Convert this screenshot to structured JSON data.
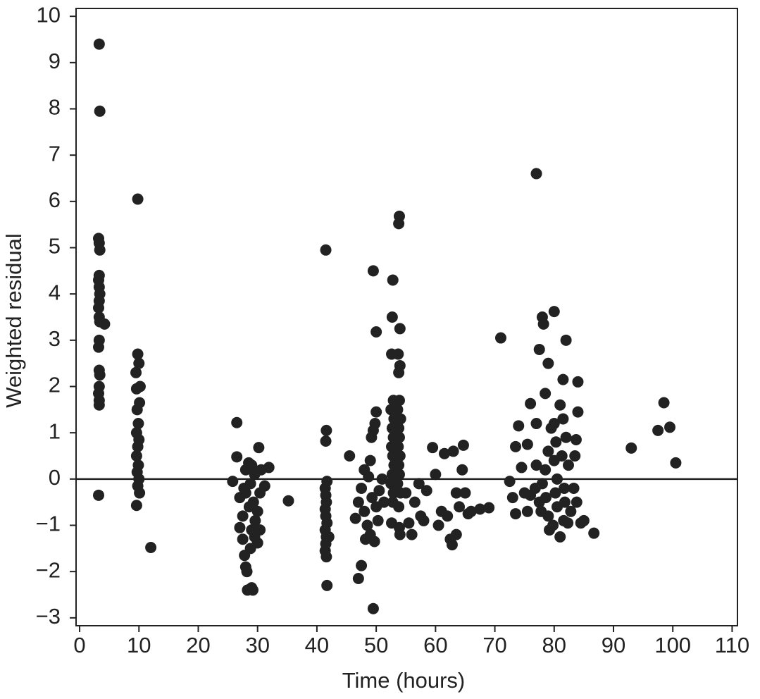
{
  "chart_data": {
    "type": "scatter",
    "x_label": "Time (hours)",
    "y_label": "Weighted residual",
    "color": "#222222",
    "hline": 0,
    "xlim": [
      -0.6,
      110.9
    ],
    "ylim": [
      -3.17,
      10.17
    ],
    "xticks": [
      0,
      10,
      20,
      30,
      40,
      50,
      60,
      70,
      80,
      90,
      100,
      110
    ],
    "yticks": [
      {
        "value": -3,
        "label": "−3"
      },
      {
        "value": -2,
        "label": "−2"
      },
      {
        "value": -1,
        "label": "−1"
      },
      0,
      1,
      2,
      3,
      4,
      5,
      6,
      7,
      8,
      9,
      10
    ],
    "x": [
      3.3,
      3.4,
      3.2,
      3.3,
      3.4,
      3.3,
      3.2,
      3.3,
      3.4,
      3.3,
      3.2,
      3.3,
      3.4,
      3.3,
      3.2,
      3.3,
      3.4,
      3.3,
      3.2,
      3.3,
      3.3,
      3.2,
      4.2,
      9.8,
      9.8,
      10,
      9.5,
      10.2,
      9.6,
      10.1,
      9.7,
      9.9,
      9.6,
      10.0,
      9.8,
      9.6,
      9.9,
      9.7,
      10.0,
      9.8,
      10.1,
      9.6,
      12,
      26.5,
      26.5,
      25.8,
      27,
      27.5,
      27,
      27.5,
      27.8,
      28,
      28.2,
      28.3,
      29,
      29.2,
      28.5,
      29,
      28,
      29.5,
      28.8,
      28,
      29.3,
      28.6,
      30,
      29.6,
      29,
      30.4,
      29.5,
      30,
      28.8,
      30.2,
      30.6,
      31.2,
      31.9,
      30.4,
      27.7,
      35.2,
      41.5,
      41.6,
      41.5,
      41.7,
      41.4,
      41.5,
      41.6,
      41.4,
      41.5,
      41.7,
      41.4,
      41.6,
      41.5,
      41.4,
      41.6,
      41.7,
      42.0,
      45.5,
      47,
      47.5,
      46.5,
      47,
      47.5,
      48,
      48,
      48.5,
      49,
      49.5,
      49.5,
      50,
      49.8,
      49.5,
      50,
      49.2,
      49,
      48.7,
      49.3,
      50,
      50.3,
      49.7,
      48.2,
      50.5,
      51,
      51.3,
      52.8,
      52.7,
      52.6,
      52.9,
      52.5,
      53.0,
      52.7,
      52.9,
      52.6,
      52.8,
      53.0,
      52.7,
      52.5,
      52.9,
      52.8,
      52.6,
      53.9,
      53.8,
      54.0,
      53.7,
      54.0,
      53.8,
      53.9,
      53.6,
      54.1,
      53.8,
      53.9,
      53.7,
      54.0,
      53.8,
      53.9,
      53.6,
      54.1,
      53.8,
      53.9,
      54.0,
      55,
      55.5,
      56,
      56.5,
      57.2,
      57.5,
      58,
      58.5,
      59.5,
      60,
      60.5,
      61,
      61.5,
      62,
      62.5,
      62.8,
      63,
      63.5,
      63.5,
      64,
      64.5,
      64.7,
      65,
      65.5,
      66,
      67.5,
      69,
      71,
      72.5,
      73,
      73.5,
      73.5,
      74,
      74.5,
      75,
      75.5,
      76,
      75.5,
      77,
      77.5,
      77,
      77,
      76.8,
      77.5,
      78,
      78.2,
      78.5,
      79,
      79.5,
      79,
      78.5,
      78,
      78.6,
      79,
      79.2,
      80,
      80,
      80.3,
      80,
      80.5,
      80.2,
      80.5,
      81,
      81,
      81.5,
      81.5,
      81.3,
      81.7,
      81.8,
      81.6,
      82,
      82,
      82.4,
      82.8,
      83.3,
      83.5,
      83.7,
      84,
      84,
      83.8,
      84.5,
      85,
      86.7,
      82.3,
      77.8,
      76,
      79.8,
      93,
      97.5,
      98.5,
      99.5,
      100.5
    ],
    "values": [
      9.4,
      7.95,
      5.2,
      5.1,
      4.95,
      4.4,
      4.3,
      4.15,
      4.0,
      3.85,
      3.7,
      3.5,
      3.4,
      3.0,
      2.85,
      2.35,
      2.25,
      2.0,
      1.85,
      1.7,
      1.6,
      -0.35,
      3.35,
      6.05,
      2.7,
      2.5,
      2.3,
      2.0,
      1.95,
      1.65,
      1.5,
      1.2,
      1.0,
      0.85,
      0.7,
      0.5,
      0.3,
      0.15,
      0.0,
      -0.15,
      -0.3,
      -0.57,
      -1.48,
      1.22,
      0.48,
      -0.05,
      -0.4,
      -0.8,
      -1.05,
      -1.3,
      -1.65,
      -1.9,
      -2.0,
      -2.4,
      -2.35,
      -2.4,
      0.35,
      0.3,
      0.2,
      0.1,
      -0.1,
      -0.3,
      -0.5,
      -0.6,
      -0.7,
      -0.9,
      -1.1,
      -1.1,
      -1.25,
      -1.38,
      -1.5,
      0.68,
      0.2,
      -0.15,
      0.25,
      -0.3,
      -0.2,
      -0.47,
      4.95,
      1.05,
      0.82,
      -0.05,
      -0.2,
      -0.35,
      -0.5,
      -0.65,
      -0.8,
      -0.95,
      -1.1,
      -1.25,
      -1.4,
      -1.55,
      -1.68,
      -2.3,
      -1.25,
      0.5,
      -2.15,
      -1.87,
      -0.85,
      -0.5,
      -0.2,
      0.2,
      -0.7,
      -1.0,
      -1.2,
      -2.8,
      4.5,
      3.18,
      1.2,
      1.05,
      1.45,
      0.9,
      0.4,
      0.05,
      -0.4,
      -0.6,
      -0.9,
      -1.35,
      -1.3,
      -0.25,
      0.0,
      -0.5,
      4.3,
      3.5,
      2.7,
      1.7,
      1.5,
      1.3,
      1.1,
      0.9,
      0.7,
      0.5,
      0.3,
      0.1,
      -0.1,
      -0.3,
      -0.5,
      -0.95,
      5.68,
      5.52,
      3.25,
      2.7,
      2.45,
      2.3,
      1.7,
      1.5,
      1.3,
      1.1,
      0.9,
      0.7,
      0.5,
      0.3,
      0.1,
      -0.1,
      -0.3,
      -0.6,
      -1.05,
      -1.2,
      -0.3,
      -0.95,
      -1.2,
      -0.5,
      -0.1,
      -0.8,
      -0.9,
      -0.25,
      0.68,
      0.1,
      -1.0,
      -0.7,
      0.55,
      -0.8,
      -1.3,
      -1.42,
      0.6,
      -1.2,
      -0.3,
      -0.6,
      0.2,
      0.73,
      -0.3,
      -0.75,
      -0.7,
      -0.65,
      -0.62,
      3.05,
      -0.05,
      -0.4,
      -0.75,
      0.7,
      1.15,
      0.25,
      -0.3,
      0.75,
      1.63,
      -0.7,
      6.6,
      2.8,
      1.2,
      0.3,
      -0.2,
      -0.5,
      3.5,
      3.35,
      1.85,
      2.5,
      1.1,
      0.6,
      0.2,
      -0.1,
      -0.4,
      -0.8,
      -1.1,
      3.62,
      1.2,
      0.8,
      0.4,
      0.0,
      -0.3,
      -0.6,
      1.6,
      -1.25,
      2.15,
      1.3,
      0.5,
      -0.2,
      -0.5,
      -0.9,
      3.0,
      0.9,
      0.3,
      -0.7,
      -0.2,
      0.5,
      0.85,
      1.45,
      2.1,
      -0.5,
      -0.95,
      -0.9,
      -1.17,
      -0.95,
      -0.7,
      -0.35,
      -1.0,
      0.67,
      1.05,
      1.65,
      1.12,
      0.35
    ]
  }
}
